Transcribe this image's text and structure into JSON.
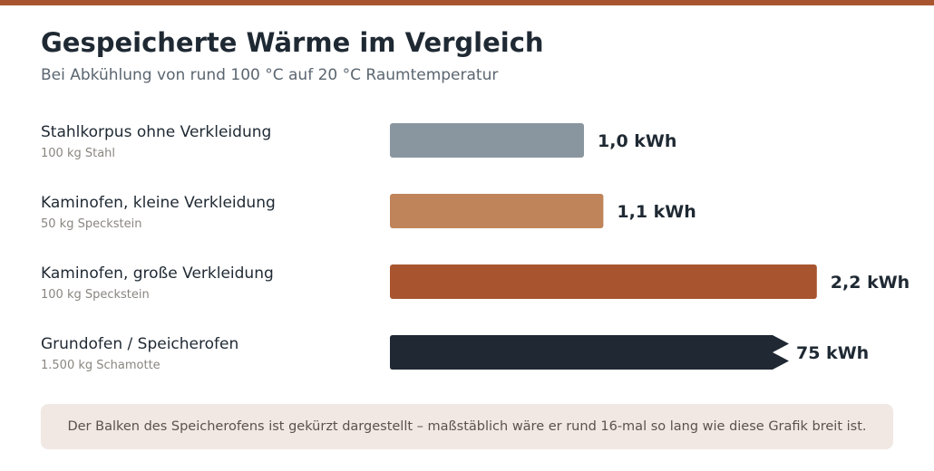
{
  "header": {
    "title": "Gespeicherte Wärme im Vergleich",
    "subtitle": "Bei Abkühlung von rund 100 °C auf 20 °C Raumtemperatur"
  },
  "rows": [
    {
      "label": "Stahlkorpus ohne Verkleidung",
      "sublabel": "100 kg Stahl",
      "value_label": "1,0 kWh"
    },
    {
      "label": "Kaminofen, kleine Verkleidung",
      "sublabel": "50 kg Speckstein",
      "value_label": "1,1 kWh"
    },
    {
      "label": "Kaminofen, große Verkleidung",
      "sublabel": "100 kg Speckstein",
      "value_label": "2,2 kWh"
    },
    {
      "label": "Grundofen / Speicherofen",
      "sublabel": "1.500 kg Schamotte",
      "value_label": "75 kWh"
    }
  ],
  "chart_data": {
    "type": "bar",
    "orientation": "horizontal",
    "unit": "kWh",
    "categories": [
      "Stahlkorpus ohne Verkleidung",
      "Kaminofen, kleine Verkleidung",
      "Kaminofen, große Verkleidung",
      "Grundofen / Speicherofen"
    ],
    "values": [
      1.0,
      1.1,
      2.2,
      75
    ],
    "truncated": [
      false,
      false,
      false,
      true
    ],
    "colors": [
      "#8a969f",
      "#c0845a",
      "#a8552f",
      "#1f2833"
    ]
  },
  "note": {
    "text": "Der Balken des Speicherofens ist gekürzt dargestellt – maßstäblich wäre er rund 16-mal so lang wie diese Grafik breit ist."
  },
  "colors": {
    "accent": "#a8552f",
    "note_background": "#f1e8e3"
  }
}
